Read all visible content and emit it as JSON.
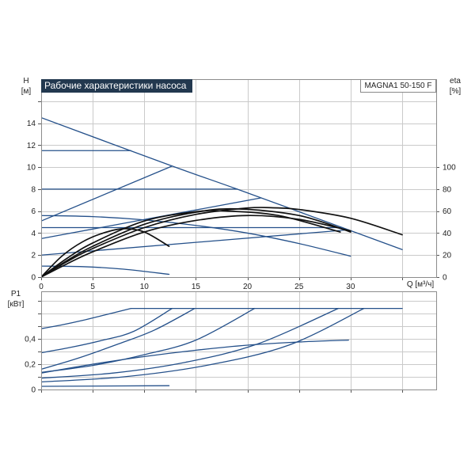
{
  "colors": {
    "curve": "#24508a",
    "efficiency": "#111111",
    "title_bg": "#22384f"
  },
  "chart_data": [
    {
      "type": "line",
      "title": "Рабочие характеристики насоса",
      "model": "MAGNA1 50-150 F",
      "ylabel": "H",
      "ylabel_unit": "[м]",
      "y2label": "eta",
      "y2label_unit": "[%]",
      "xlabel": "Q [м³/ч]",
      "xlim": [
        0,
        38.3
      ],
      "ylim": [
        0,
        18
      ],
      "y2lim": [
        0,
        180
      ],
      "grid": true,
      "x_ticks": [
        0,
        5,
        10,
        15,
        20,
        25,
        30,
        35
      ],
      "x_tick_labels": [
        "0",
        "5",
        "10",
        "15",
        "20",
        "25",
        "30",
        ""
      ],
      "y_ticks": [
        0,
        2,
        4,
        6,
        8,
        10,
        12,
        14,
        16
      ],
      "y_tick_labels": [
        "0",
        "2",
        "4",
        "6",
        "8",
        "10",
        "12",
        "14",
        ""
      ],
      "y2_ticks": [
        0,
        20,
        40,
        60,
        80,
        100
      ],
      "y2_tick_labels": [
        "0",
        "20",
        "40",
        "60",
        "80",
        "100"
      ],
      "series": [
        {
          "axis": "H",
          "color": "#24508a",
          "points": [
            [
              0,
              14.5
            ],
            [
              12.7,
              10.1
            ],
            [
              19,
              8.0
            ],
            [
              29.2,
              4.5
            ],
            [
              35,
              2.5
            ]
          ]
        },
        {
          "axis": "H",
          "color": "#24508a",
          "points": [
            [
              0,
              11.5
            ],
            [
              8.7,
              11.5
            ]
          ]
        },
        {
          "axis": "H",
          "color": "#24508a",
          "points": [
            [
              0,
              8.0
            ],
            [
              19,
              8.0
            ]
          ]
        },
        {
          "axis": "H",
          "color": "#24508a",
          "points": [
            [
              0,
              4.5
            ],
            [
              29.2,
              4.5
            ]
          ]
        },
        {
          "axis": "H",
          "color": "#24508a",
          "points": [
            [
              0,
              5.1
            ],
            [
              12.7,
              10.1
            ]
          ]
        },
        {
          "axis": "H",
          "color": "#24508a",
          "points": [
            [
              0,
              3.5
            ],
            [
              21.3,
              7.2
            ]
          ]
        },
        {
          "axis": "H",
          "color": "#24508a",
          "points": [
            [
              0,
              2.0
            ],
            [
              29.8,
              4.3
            ]
          ]
        },
        {
          "axis": "H",
          "color": "#24508a",
          "points": [
            [
              0,
              5.6
            ],
            [
              5,
              5.5
            ],
            [
              10,
              5.2
            ],
            [
              15,
              4.7
            ],
            [
              20,
              4.0
            ],
            [
              25,
              3.05
            ],
            [
              30,
              1.9
            ]
          ]
        },
        {
          "axis": "H",
          "color": "#24508a",
          "points": [
            [
              0,
              1.0
            ],
            [
              4,
              0.95
            ],
            [
              8,
              0.72
            ],
            [
              12.4,
              0.25
            ]
          ]
        },
        {
          "axis": "eta",
          "color": "#111111",
          "points": [
            [
              0,
              0
            ],
            [
              2.5,
              14
            ],
            [
              5,
              26
            ],
            [
              10,
              45
            ],
            [
              15,
              57
            ],
            [
              20,
              62.8
            ],
            [
              22.5,
              63
            ],
            [
              25,
              61.5
            ],
            [
              30,
              53.5
            ],
            [
              35,
              38.5
            ]
          ]
        },
        {
          "axis": "eta",
          "color": "#111111",
          "points": [
            [
              0,
              0
            ],
            [
              2.5,
              15
            ],
            [
              5,
              28
            ],
            [
              10,
              48
            ],
            [
              15,
              59
            ],
            [
              19,
              62
            ],
            [
              25,
              56
            ],
            [
              30,
              41
            ]
          ]
        },
        {
          "axis": "eta",
          "color": "#111111",
          "points": [
            [
              0,
              0
            ],
            [
              2.5,
              17
            ],
            [
              5,
              31
            ],
            [
              10,
              51
            ],
            [
              15,
              59.5
            ],
            [
              18,
              60
            ],
            [
              23,
              56
            ],
            [
              29,
              41
            ]
          ]
        },
        {
          "axis": "eta",
          "color": "#111111",
          "points": [
            [
              0,
              0
            ],
            [
              2.5,
              12
            ],
            [
              5,
              23
            ],
            [
              10,
              41
            ],
            [
              15,
              51.5
            ],
            [
              20,
              56
            ],
            [
              25,
              52.5
            ],
            [
              30,
              42
            ]
          ]
        },
        {
          "axis": "eta",
          "color": "#111111",
          "points": [
            [
              0,
              0
            ],
            [
              2,
              19
            ],
            [
              4,
              32
            ],
            [
              6,
              40
            ],
            [
              8,
              44
            ],
            [
              10,
              41
            ],
            [
              12.4,
              28
            ]
          ]
        }
      ]
    },
    {
      "type": "line",
      "ylabel": "P1",
      "ylabel_unit": "[кВт]",
      "xlim": [
        0,
        38.3
      ],
      "ylim": [
        0,
        0.775
      ],
      "grid": true,
      "x_ticks": [
        0,
        5,
        10,
        15,
        20,
        25,
        30,
        35
      ],
      "x_tick_labels": [
        "",
        "",
        "",
        "",
        "",
        "",
        "",
        ""
      ],
      "y_ticks": [
        0,
        0.1,
        0.2,
        0.3,
        0.4,
        0.5,
        0.6,
        0.7
      ],
      "y_tick_labels": [
        "0",
        "",
        "0,2",
        "",
        "0,4",
        "",
        "",
        ""
      ],
      "series": [
        {
          "axis": "P1",
          "color": "#24508a",
          "points": [
            [
              8.7,
              0.64
            ],
            [
              35,
              0.64
            ]
          ]
        },
        {
          "axis": "P1",
          "color": "#24508a",
          "points": [
            [
              0,
              0.48
            ],
            [
              2,
              0.51
            ],
            [
              4,
              0.545
            ],
            [
              6,
              0.585
            ],
            [
              8.7,
              0.64
            ]
          ]
        },
        {
          "axis": "P1",
          "color": "#24508a",
          "points": [
            [
              0,
              0.29
            ],
            [
              3,
              0.335
            ],
            [
              6,
              0.39
            ],
            [
              9,
              0.46
            ],
            [
              12.7,
              0.64
            ]
          ]
        },
        {
          "axis": "P1",
          "color": "#24508a",
          "points": [
            [
              0,
              0.16
            ],
            [
              3.5,
              0.245
            ],
            [
              7.5,
              0.36
            ],
            [
              11,
              0.47
            ],
            [
              14.9,
              0.64
            ]
          ]
        },
        {
          "axis": "P1",
          "color": "#24508a",
          "points": [
            [
              0,
              0.135
            ],
            [
              5,
              0.19
            ],
            [
              10,
              0.275
            ],
            [
              15,
              0.39
            ],
            [
              20.7,
              0.64
            ]
          ]
        },
        {
          "axis": "P1",
          "color": "#24508a",
          "points": [
            [
              0,
              0.09
            ],
            [
              7,
              0.13
            ],
            [
              14,
              0.215
            ],
            [
              21,
              0.36
            ],
            [
              28.8,
              0.64
            ]
          ]
        },
        {
          "axis": "P1",
          "color": "#24508a",
          "points": [
            [
              0,
              0.06
            ],
            [
              8,
              0.1
            ],
            [
              16,
              0.19
            ],
            [
              24,
              0.35
            ],
            [
              31.3,
              0.64
            ]
          ]
        },
        {
          "axis": "P1",
          "color": "#24508a",
          "points": [
            [
              0,
              0.13
            ],
            [
              5,
              0.2
            ],
            [
              10,
              0.26
            ],
            [
              15,
              0.31
            ],
            [
              20,
              0.35
            ],
            [
              25,
              0.375
            ],
            [
              29.8,
              0.39
            ]
          ]
        },
        {
          "axis": "P1",
          "color": "#24508a",
          "points": [
            [
              0,
              0.025
            ],
            [
              12.4,
              0.03
            ]
          ]
        }
      ]
    }
  ]
}
